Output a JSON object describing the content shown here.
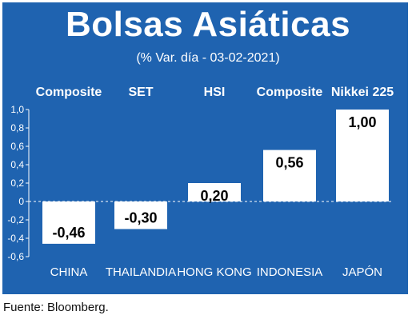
{
  "chart_data": {
    "type": "bar",
    "title": "Bolsas Asiáticas",
    "subtitle": "(% Var. día - 03-02-2021)",
    "index_names": [
      "Composite",
      "SET",
      "HSI",
      "Composite",
      "Nikkei 225"
    ],
    "categories": [
      "CHINA",
      "THAILANDIA",
      "HONG KONG",
      "INDONESIA",
      "JAPÓN"
    ],
    "values": [
      -0.46,
      -0.3,
      0.2,
      0.56,
      1.0
    ],
    "value_labels": [
      "-0,46",
      "-0,30",
      "0,20",
      "0,56",
      "1,00"
    ],
    "y_ticks": [
      "1,0",
      "0,8",
      "0,6",
      "0,4",
      "0,2",
      "0",
      "-0,2",
      "-0,4",
      "-0,6"
    ],
    "ylim": [
      -0.6,
      1.0
    ],
    "grid": false,
    "colors": {
      "background": "#1f63b0",
      "bar": "#ffffff",
      "text": "#ffffff",
      "value_text": "#000000"
    }
  },
  "source": "Fuente: Bloomberg."
}
